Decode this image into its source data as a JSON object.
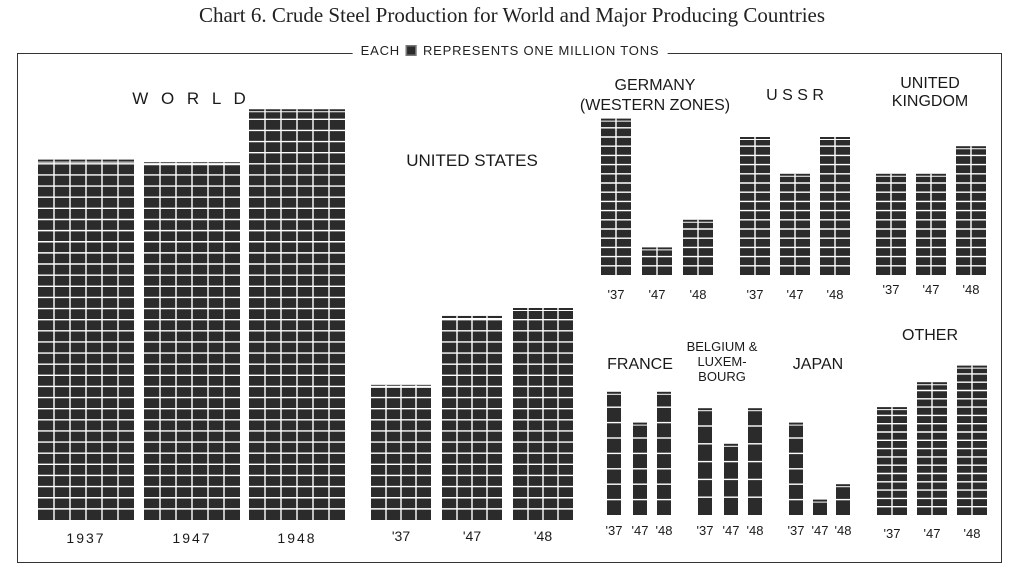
{
  "title": "Chart 6.  Crude Steel Production for World and Major Producing Countries",
  "legend": {
    "prefix": "EACH",
    "suffix": "REPRESENTS ONE MILLION TONS"
  },
  "colors": {
    "cube": "#2b2b2b",
    "cube_gap": "#ffffff",
    "text": "#1a1a1a"
  },
  "chart_data": [
    {
      "type": "bar",
      "name_lines": [
        "W O R L D"
      ],
      "categories": [
        "1937",
        "1947",
        "1948"
      ],
      "values": [
        136,
        135,
        155
      ],
      "unit": "million tons"
    },
    {
      "type": "bar",
      "name_lines": [
        "UNITED STATES"
      ],
      "categories": [
        "'37",
        "'47",
        "'48"
      ],
      "values": [
        51,
        77,
        80
      ],
      "unit": "million tons"
    },
    {
      "type": "bar",
      "name_lines": [
        "GERMANY",
        "(WESTERN ZONES)"
      ],
      "categories": [
        "'37",
        "'47",
        "'48"
      ],
      "values": [
        17,
        3,
        6
      ],
      "unit": "million tons"
    },
    {
      "type": "bar",
      "name_lines": [
        "U S S R"
      ],
      "categories": [
        "'37",
        "'47",
        "'48"
      ],
      "values": [
        15,
        11,
        15
      ],
      "unit": "million tons"
    },
    {
      "type": "bar",
      "name_lines": [
        "UNITED",
        "KINGDOM"
      ],
      "categories": [
        "'37",
        "'47",
        "'48"
      ],
      "values": [
        11,
        11,
        14
      ],
      "unit": "million tons"
    },
    {
      "type": "bar",
      "name_lines": [
        "FRANCE"
      ],
      "categories": [
        "'37",
        "'47",
        "'48"
      ],
      "values": [
        8,
        6,
        8
      ],
      "unit": "million tons"
    },
    {
      "type": "bar",
      "name_lines": [
        "BELGIUM &",
        "LUXEM-",
        "BOURG"
      ],
      "categories": [
        "'37",
        "'47",
        "'48"
      ],
      "values": [
        6,
        4,
        6
      ],
      "unit": "million tons"
    },
    {
      "type": "bar",
      "name_lines": [
        "JAPAN"
      ],
      "categories": [
        "'37",
        "'47",
        "'48"
      ],
      "values": [
        6,
        1,
        2
      ],
      "unit": "million tons"
    },
    {
      "type": "bar",
      "name_lines": [
        "OTHER"
      ],
      "categories": [
        "'37",
        "'47",
        "'48"
      ],
      "values": [
        13,
        16,
        18
      ],
      "unit": "million tons"
    }
  ]
}
